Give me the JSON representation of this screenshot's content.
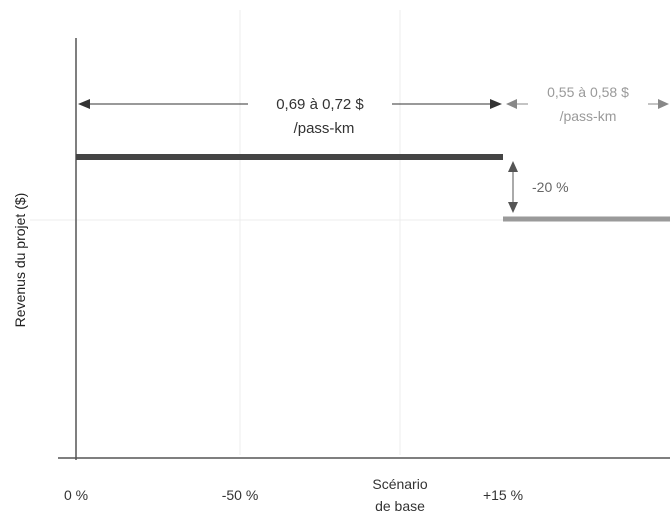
{
  "chart_data": {
    "type": "line",
    "title": "",
    "ylabel": "Revenus du projet ($)",
    "xlabel": "",
    "x_ticks": [
      "0 %",
      "-50 %",
      "Scénario de base",
      "+15 %"
    ],
    "x_tick_base_line1": "Scénario",
    "x_tick_base_line2": "de base",
    "series": [
      {
        "values": [
          {
            "x": "0 %",
            "y": 1.0
          },
          {
            "x": "+15 %",
            "y": 1.0
          }
        ],
        "color": "#444444"
      },
      {
        "values": [
          {
            "x": "+15 %",
            "y": 0.8
          },
          {
            "x": "end",
            "y": 0.8
          }
        ],
        "color": "#9a9a9a"
      }
    ],
    "annotations": {
      "range_1_line1": "0,69 à 0,72 $",
      "range_1_line2": "/pass-km",
      "range_2_line1": "0,55 à 0,58 $",
      "range_2_line2": "/pass-km",
      "change": "-20 %"
    },
    "colors": {
      "dark": "#444444",
      "light": "#9a9a9a",
      "axis": "#555555",
      "grid": "#e6e6e6"
    }
  }
}
